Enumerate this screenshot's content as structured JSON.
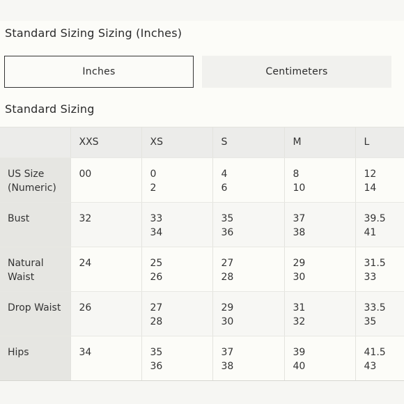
{
  "page": {
    "heading": "Standard Sizing Sizing (Inches)",
    "section_heading": "Standard Sizing"
  },
  "unit_toggle": {
    "inches_label": "Inches",
    "centimeters_label": "Centimeters",
    "selected": "Inches"
  },
  "table": {
    "corner": "",
    "columns": [
      "XXS",
      "XS",
      "S",
      "M",
      "L"
    ],
    "rows": [
      {
        "label": "US Size (Numeric)",
        "label_lines": [
          "US Size",
          "(Numeric)"
        ],
        "cells": [
          [
            "00"
          ],
          [
            "0",
            "2"
          ],
          [
            "4",
            "6"
          ],
          [
            "8",
            "10"
          ],
          [
            "12",
            "14"
          ]
        ]
      },
      {
        "label": "Bust",
        "label_lines": [
          "Bust"
        ],
        "cells": [
          [
            "32"
          ],
          [
            "33",
            "34"
          ],
          [
            "35",
            "36"
          ],
          [
            "37",
            "38"
          ],
          [
            "39.5",
            "41"
          ]
        ]
      },
      {
        "label": "Natural Waist",
        "label_lines": [
          "Natural",
          "Waist"
        ],
        "cells": [
          [
            "24"
          ],
          [
            "25",
            "26"
          ],
          [
            "27",
            "28"
          ],
          [
            "29",
            "30"
          ],
          [
            "31.5",
            "33"
          ]
        ]
      },
      {
        "label": "Drop Waist",
        "label_lines": [
          "Drop Waist"
        ],
        "cells": [
          [
            "26"
          ],
          [
            "27",
            "28"
          ],
          [
            "29",
            "30"
          ],
          [
            "31",
            "32"
          ],
          [
            "33.5",
            "35"
          ]
        ]
      },
      {
        "label": "Hips",
        "label_lines": [
          "Hips"
        ],
        "cells": [
          [
            "34"
          ],
          [
            "35",
            "36"
          ],
          [
            "37",
            "38"
          ],
          [
            "39",
            "40"
          ],
          [
            "41.5",
            "43"
          ]
        ]
      }
    ]
  },
  "colors": {
    "background": "#fcfcf8",
    "header_row": "#ececea",
    "label_column": "#e6e6e2",
    "alt_row": "#f7f7f4",
    "active_border": "#333333",
    "inactive_button": "#f1f1ee",
    "text": "#2b2b2b"
  }
}
